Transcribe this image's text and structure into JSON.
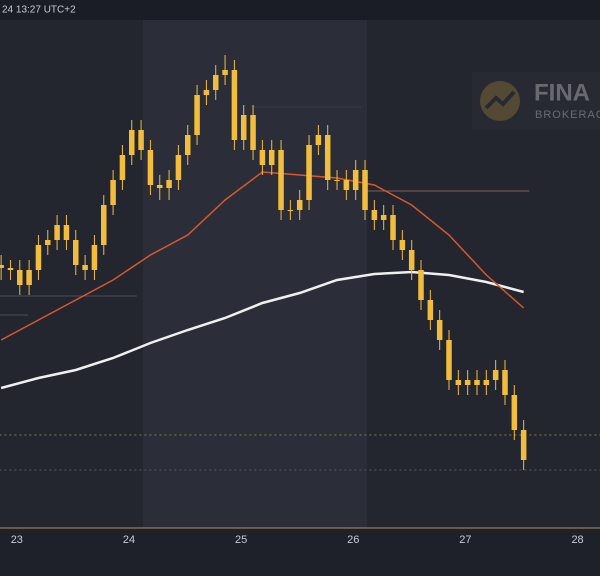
{
  "chart_data": {
    "type": "candlestick",
    "header": "24 13:27 UTC+2",
    "logo": {
      "title": "FINA",
      "subtitle": "BROKERAGE"
    },
    "color": "#f2bd3c",
    "ylim": [
      0,
      100
    ],
    "xlim": [
      22.85,
      28.2
    ],
    "xticks": [
      23,
      24,
      25,
      26,
      27,
      28
    ],
    "candle_start": 22.86,
    "candle_step": 0.0832,
    "open": [
      51,
      50.4,
      50,
      47,
      50,
      55,
      56,
      59,
      56,
      51,
      50,
      55,
      63,
      68,
      73,
      78,
      74,
      67,
      66.4,
      68,
      73,
      77,
      85,
      86,
      89,
      90,
      76,
      81,
      74,
      71,
      74,
      62,
      62,
      64,
      75,
      77,
      68,
      68,
      66,
      70,
      62,
      60,
      61,
      56,
      54,
      50,
      44,
      40,
      36,
      28,
      27,
      28,
      27,
      28,
      30,
      25,
      18
    ],
    "high": [
      53,
      52,
      52,
      52,
      57,
      58,
      61,
      61,
      58,
      53,
      57,
      65,
      70,
      75,
      80,
      80,
      76,
      69,
      70,
      75,
      79,
      87,
      88,
      91,
      93,
      92,
      83,
      83,
      76,
      76,
      76,
      64,
      66,
      77,
      79,
      79,
      70,
      70,
      72,
      72,
      64,
      63,
      63,
      58,
      56,
      52,
      46,
      42,
      38,
      30,
      30,
      30,
      30,
      32,
      32,
      27,
      20
    ],
    "low": [
      48,
      48,
      45,
      45,
      48,
      53,
      54,
      54,
      49,
      48,
      48,
      53,
      61,
      66,
      71,
      72,
      65,
      64,
      64,
      66,
      71,
      75,
      83,
      84,
      87,
      74,
      74,
      72,
      69,
      69,
      60,
      60,
      60,
      62,
      73,
      66,
      66,
      64,
      64,
      60,
      58,
      58,
      54,
      52,
      48,
      42,
      38,
      34,
      26,
      25,
      25,
      25,
      25,
      26,
      23,
      16,
      10
    ],
    "close": [
      50.4,
      50,
      47,
      50,
      55,
      56,
      59,
      56,
      51,
      50,
      55,
      63,
      68,
      73,
      78,
      74,
      67,
      66.4,
      68,
      73,
      77,
      85,
      86,
      89,
      90,
      76,
      81,
      74,
      71,
      74,
      62,
      62,
      64,
      75,
      77,
      68,
      68,
      66,
      70,
      62,
      60,
      61,
      56,
      54,
      50,
      44,
      40,
      36,
      28,
      27,
      28,
      27,
      28,
      30,
      25,
      18,
      12
    ],
    "overlays": [
      {
        "color": "#f0f0f0",
        "x": [
          0,
          4,
          8,
          12,
          16,
          20,
          24,
          28,
          32,
          36,
          40,
          44,
          48,
          52,
          56
        ],
        "values": [
          26.4,
          28.4,
          30,
          32.4,
          35.4,
          38,
          40.4,
          43.4,
          45.4,
          48,
          49.2,
          49.6,
          49,
          47.6,
          45.6
        ]
      },
      {
        "color": "#d9582b",
        "x": [
          0,
          4,
          8,
          12,
          16,
          20,
          24,
          28,
          32,
          36,
          40,
          44,
          48,
          52,
          56
        ],
        "values": [
          36,
          40,
          44,
          48,
          53,
          57,
          64,
          69.6,
          69,
          68.4,
          67,
          63,
          57,
          49,
          42.4
        ]
      }
    ],
    "levels": [
      {
        "value": 17,
        "color": "#a0703a",
        "dashed": true,
        "from": 22.8,
        "to": 28.2
      },
      {
        "value": 10,
        "color": "#555a66",
        "dashed": true,
        "from": 22.8,
        "to": 28.2
      },
      {
        "value": 65.8,
        "color": "#8a5a55",
        "dashed": false,
        "from": 26.12,
        "to": 27.57
      },
      {
        "value": 44.8,
        "color": "#4a4f5c",
        "dashed": false,
        "from": 22.8,
        "to": 24.07
      },
      {
        "value": 41,
        "color": "#4a4f5c",
        "dashed": false,
        "from": 22.8,
        "to": 23.1
      },
      {
        "value": 82.6,
        "color": "#3a3e4a",
        "dashed": false,
        "from": 25.09,
        "to": 26.07
      }
    ]
  }
}
